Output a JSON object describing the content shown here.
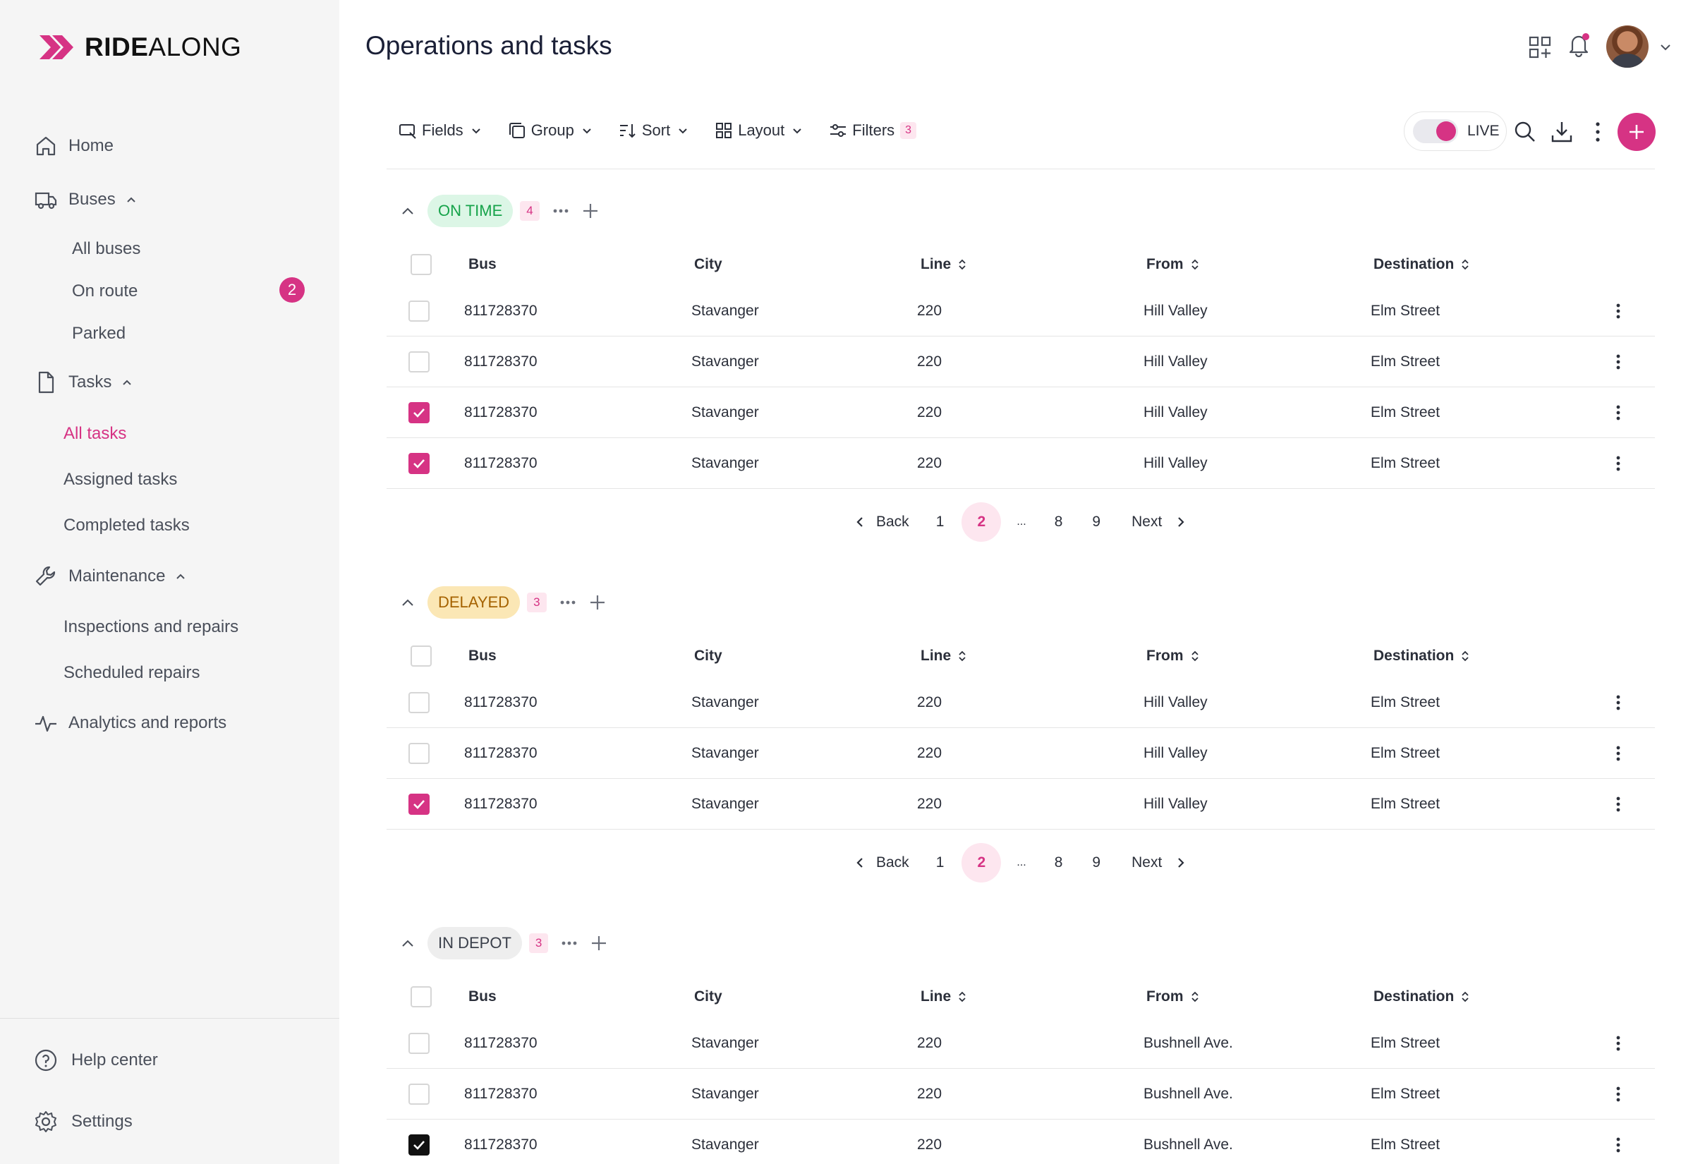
{
  "brand": {
    "name_bold": "RIDE",
    "name_light": "ALONG",
    "accent": "#d63384"
  },
  "sidebar": {
    "home": "Home",
    "buses": {
      "label": "Buses",
      "items": [
        "All buses",
        "On route",
        "Parked"
      ],
      "on_route_count": "2"
    },
    "tasks": {
      "label": "Tasks",
      "items": [
        "All tasks",
        "Assigned tasks",
        "Completed tasks"
      ]
    },
    "maintenance": {
      "label": "Maintenance",
      "items": [
        "Inspections and repairs",
        "Scheduled repairs"
      ]
    },
    "analytics": "Analytics and reports",
    "help": "Help center",
    "settings": "Settings"
  },
  "header": {
    "title": "Operations and tasks"
  },
  "toolbar": {
    "fields": "Fields",
    "group": "Group",
    "sort": "Sort",
    "layout": "Layout",
    "filters": "Filters",
    "filters_count": "3",
    "live": "LIVE"
  },
  "columns": {
    "bus": "Bus",
    "city": "City",
    "line": "Line",
    "from": "From",
    "destination": "Destination"
  },
  "pager": {
    "back": "Back",
    "p1": "1",
    "current": "2",
    "ellipsis": "...",
    "p8": "8",
    "p9": "9",
    "next": "Next"
  },
  "groups": [
    {
      "status": "ON TIME",
      "count": "4",
      "rows": [
        {
          "bus": "811728370",
          "city": "Stavanger",
          "line": "220",
          "from": "Hill Valley",
          "destination": "Elm Street",
          "checked": false
        },
        {
          "bus": "811728370",
          "city": "Stavanger",
          "line": "220",
          "from": "Hill Valley",
          "destination": "Elm Street",
          "checked": false
        },
        {
          "bus": "811728370",
          "city": "Stavanger",
          "line": "220",
          "from": "Hill Valley",
          "destination": "Elm Street",
          "checked": true
        },
        {
          "bus": "811728370",
          "city": "Stavanger",
          "line": "220",
          "from": "Hill Valley",
          "destination": "Elm Street",
          "checked": true
        }
      ]
    },
    {
      "status": "DELAYED",
      "count": "3",
      "rows": [
        {
          "bus": "811728370",
          "city": "Stavanger",
          "line": "220",
          "from": "Hill Valley",
          "destination": "Elm Street",
          "checked": false
        },
        {
          "bus": "811728370",
          "city": "Stavanger",
          "line": "220",
          "from": "Hill Valley",
          "destination": "Elm Street",
          "checked": false
        },
        {
          "bus": "811728370",
          "city": "Stavanger",
          "line": "220",
          "from": "Hill Valley",
          "destination": "Elm Street",
          "checked": true
        }
      ]
    },
    {
      "status": "IN DEPOT",
      "count": "3",
      "rows": [
        {
          "bus": "811728370",
          "city": "Stavanger",
          "line": "220",
          "from": "Bushnell Ave.",
          "destination": "Elm Street",
          "checked": false
        },
        {
          "bus": "811728370",
          "city": "Stavanger",
          "line": "220",
          "from": "Bushnell Ave.",
          "destination": "Elm Street",
          "checked": false
        },
        {
          "bus": "811728370",
          "city": "Stavanger",
          "line": "220",
          "from": "Bushnell Ave.",
          "destination": "Elm Street",
          "checked": true
        }
      ]
    }
  ]
}
